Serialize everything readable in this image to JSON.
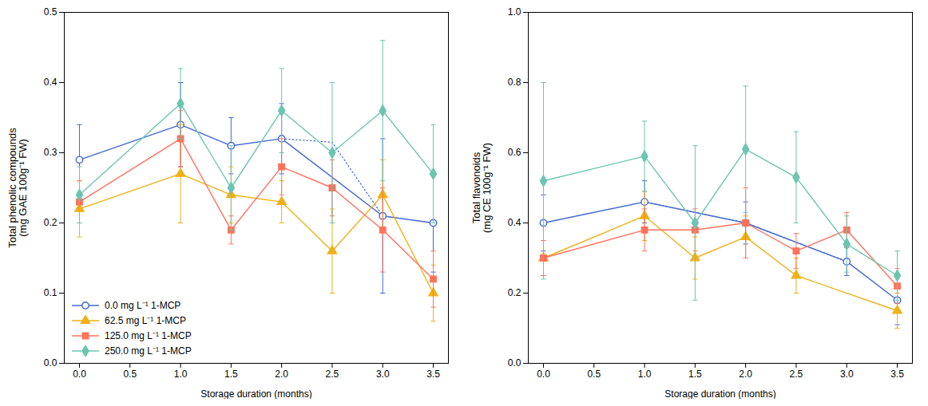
{
  "chart_data": [
    {
      "type": "line",
      "xlabel": "Storage duration (months)",
      "ylabel": "Total phenolic compounds\n(mg GAE 100g⁻¹ FW)",
      "xlim": [
        -0.15,
        3.65
      ],
      "xticks": [
        {
          "value": 0.0,
          "label": "0.0"
        },
        0.5,
        {
          "value": 1.0,
          "label": "1.0"
        },
        1.5,
        {
          "value": 2.0,
          "label": "2.0"
        },
        2.5,
        {
          "value": 3.0,
          "label": "3.0"
        },
        3.5
      ],
      "ylim": [
        0.0,
        0.5
      ],
      "yticks": [
        {
          "value": 0.0,
          "label": "0.0"
        },
        0.1,
        0.2,
        0.3,
        0.4,
        0.5
      ],
      "legend": "lower left",
      "series": [
        {
          "name": "0.0 mg L⁻¹ 1-MCP",
          "marker": "open circle",
          "line_style": "solid",
          "x": [
            0.0,
            1.0,
            1.5,
            2.0,
            3.0,
            3.5
          ],
          "values": [
            0.29,
            0.34,
            0.31,
            0.32,
            0.21,
            0.2
          ],
          "yerr": [
            0.05,
            0.06,
            0.04,
            0.05,
            0.11,
            0.07
          ],
          "bridge": {
            "x": [
              2.0,
              2.5,
              3.0
            ],
            "values": [
              0.32,
              0.315,
              0.21
            ],
            "line_style": "dotted"
          }
        },
        {
          "name": "62.5 mg L⁻¹ 1-MCP",
          "marker": "triangle",
          "line_style": "solid",
          "x": [
            0.0,
            1.0,
            1.5,
            2.0,
            2.5,
            3.0,
            3.5
          ],
          "values": [
            0.22,
            0.27,
            0.24,
            0.23,
            0.16,
            0.24,
            0.1
          ],
          "yerr": [
            0.04,
            0.07,
            0.04,
            0.03,
            0.06,
            0.05,
            0.04
          ]
        },
        {
          "name": "125.0 mg L⁻¹ 1-MCP",
          "marker": "square",
          "line_style": "solid",
          "x": [
            0.0,
            1.0,
            1.5,
            2.0,
            2.5,
            3.0,
            3.5
          ],
          "values": [
            0.23,
            0.32,
            0.19,
            0.28,
            0.25,
            0.19,
            0.12
          ],
          "yerr": [
            0.03,
            0.04,
            0.02,
            0.04,
            0.04,
            0.06,
            0.04
          ]
        },
        {
          "name": "250.0 mg L⁻¹ 1-MCP",
          "marker": "diamond",
          "line_style": "solid",
          "x": [
            0.0,
            1.0,
            1.5,
            2.0,
            2.5,
            3.0,
            3.5
          ],
          "values": [
            0.24,
            0.37,
            0.25,
            0.36,
            0.3,
            0.36,
            0.27
          ],
          "yerr": [
            0.04,
            0.05,
            0.06,
            0.06,
            0.1,
            0.1,
            0.07
          ]
        }
      ]
    },
    {
      "type": "line",
      "xlabel": "Storage duration (months)",
      "ylabel": "Total flavonoids\n(mg CE 100g⁻¹ FW)",
      "xlim": [
        -0.15,
        3.65
      ],
      "xticks": [
        {
          "value": 0.0,
          "label": "0.0"
        },
        0.5,
        {
          "value": 1.0,
          "label": "1.0"
        },
        1.5,
        {
          "value": 2.0,
          "label": "2.0"
        },
        2.5,
        {
          "value": 3.0,
          "label": "3.0"
        },
        3.5
      ],
      "ylim": [
        0.0,
        1.0
      ],
      "yticks": [
        {
          "value": 0.0,
          "label": "0.0"
        },
        0.2,
        0.4,
        0.6,
        0.8,
        {
          "value": 1.0,
          "label": "1.0"
        }
      ],
      "series": [
        {
          "name": "0.0 mg L⁻¹ 1-MCP",
          "marker": "open circle",
          "line_style": "solid",
          "x": [
            0.0,
            1.0,
            2.0,
            3.0,
            3.5
          ],
          "values": [
            0.4,
            0.46,
            0.4,
            0.29,
            0.18
          ],
          "yerr": [
            0.08,
            0.06,
            0.06,
            0.04,
            0.07
          ],
          "bridge": {
            "x": [
              1.0,
              1.5,
              2.0,
              2.5,
              3.0
            ],
            "values": [
              0.46,
              0.43,
              0.4,
              0.345,
              0.29
            ],
            "line_style": "dotted"
          }
        },
        {
          "name": "62.5 mg L⁻¹ 1-MCP",
          "marker": "triangle",
          "line_style": "solid",
          "x": [
            0.0,
            1.0,
            1.5,
            2.0,
            2.5,
            3.5
          ],
          "values": [
            0.3,
            0.42,
            0.3,
            0.36,
            0.25,
            0.15
          ],
          "yerr": [
            0.05,
            0.07,
            0.06,
            0.06,
            0.05,
            0.05
          ]
        },
        {
          "name": "125.0 mg L⁻¹ 1-MCP",
          "marker": "square",
          "line_style": "solid",
          "x": [
            0.0,
            1.0,
            1.5,
            2.0,
            2.5,
            3.0,
            3.5
          ],
          "values": [
            0.3,
            0.38,
            0.38,
            0.4,
            0.32,
            0.38,
            0.22
          ],
          "yerr": [
            0.05,
            0.06,
            0.06,
            0.1,
            0.05,
            0.05,
            0.05
          ]
        },
        {
          "name": "250.0 mg L⁻¹ 1-MCP",
          "marker": "diamond",
          "line_style": "solid",
          "x": [
            0.0,
            1.0,
            1.5,
            2.0,
            2.5,
            3.0,
            3.5
          ],
          "values": [
            0.52,
            0.59,
            0.4,
            0.61,
            0.53,
            0.34,
            0.25
          ],
          "yerr": [
            0.28,
            0.1,
            0.22,
            0.18,
            0.13,
            0.08,
            0.07
          ]
        }
      ]
    }
  ]
}
